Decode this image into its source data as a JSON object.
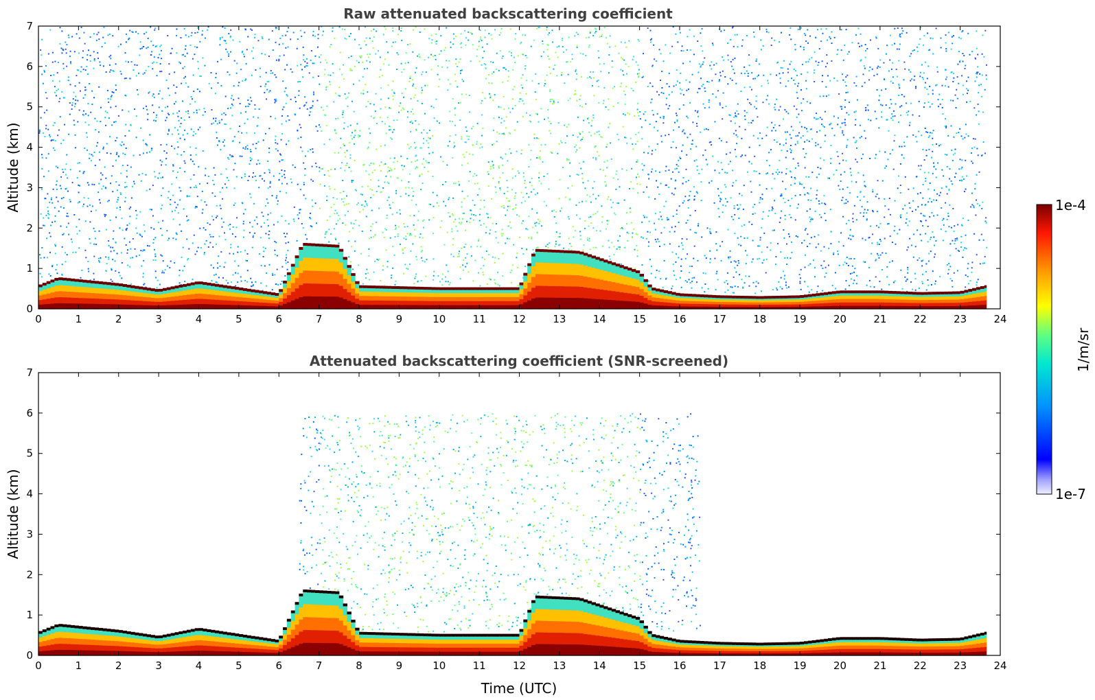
{
  "chart_data": [
    {
      "type": "heatmap",
      "title": "Raw attenuated backscattering coefficient",
      "xlabel": "",
      "ylabel": "Altitude (km)",
      "xlim": [
        0,
        24
      ],
      "ylim": [
        0,
        7
      ],
      "xticks": [
        "0",
        "1",
        "2",
        "3",
        "4",
        "5",
        "6",
        "7",
        "8",
        "9",
        "10",
        "11",
        "12",
        "13",
        "14",
        "15",
        "16",
        "17",
        "18",
        "19",
        "20",
        "21",
        "22",
        "23",
        "24"
      ],
      "yticks": [
        "0",
        "1",
        "2",
        "3",
        "4",
        "5",
        "6",
        "7"
      ],
      "data_end_time": 23.65,
      "boundary_layer_top": [
        [
          0,
          0.55
        ],
        [
          0.5,
          0.75
        ],
        [
          1,
          0.7
        ],
        [
          2,
          0.6
        ],
        [
          3,
          0.45
        ],
        [
          4,
          0.65
        ],
        [
          5,
          0.5
        ],
        [
          6,
          0.35
        ],
        [
          6.6,
          1.6
        ],
        [
          7.5,
          1.55
        ],
        [
          8,
          0.55
        ],
        [
          10,
          0.5
        ],
        [
          12,
          0.5
        ],
        [
          12.4,
          1.45
        ],
        [
          13.5,
          1.4
        ],
        [
          15,
          0.9
        ],
        [
          15.3,
          0.5
        ],
        [
          16,
          0.35
        ],
        [
          17,
          0.3
        ],
        [
          18,
          0.28
        ],
        [
          19,
          0.3
        ],
        [
          20,
          0.42
        ],
        [
          21,
          0.42
        ],
        [
          22,
          0.38
        ],
        [
          23,
          0.4
        ],
        [
          23.65,
          0.55
        ]
      ],
      "noise_density": "high"
    },
    {
      "type": "heatmap",
      "title": "Attenuated backscattering coefficient (SNR-screened)",
      "xlabel": "Time (UTC)",
      "ylabel": "Altitude (km)",
      "xlim": [
        0,
        24
      ],
      "ylim": [
        0,
        7
      ],
      "xticks": [
        "0",
        "1",
        "2",
        "3",
        "4",
        "5",
        "6",
        "7",
        "8",
        "9",
        "10",
        "11",
        "12",
        "13",
        "14",
        "15",
        "16",
        "17",
        "18",
        "19",
        "20",
        "21",
        "22",
        "23",
        "24"
      ],
      "yticks": [
        "0",
        "1",
        "2",
        "3",
        "4",
        "5",
        "6",
        "7"
      ],
      "data_end_time": 23.65,
      "boundary_layer_top": [
        [
          0,
          0.55
        ],
        [
          0.5,
          0.75
        ],
        [
          1,
          0.7
        ],
        [
          2,
          0.6
        ],
        [
          3,
          0.45
        ],
        [
          4,
          0.65
        ],
        [
          5,
          0.5
        ],
        [
          6,
          0.35
        ],
        [
          6.6,
          1.6
        ],
        [
          7.5,
          1.55
        ],
        [
          8,
          0.55
        ],
        [
          10,
          0.5
        ],
        [
          12,
          0.5
        ],
        [
          12.4,
          1.45
        ],
        [
          13.5,
          1.4
        ],
        [
          15,
          0.9
        ],
        [
          15.3,
          0.5
        ],
        [
          16,
          0.35
        ],
        [
          17,
          0.3
        ],
        [
          18,
          0.28
        ],
        [
          19,
          0.3
        ],
        [
          20,
          0.42
        ],
        [
          21,
          0.42
        ],
        [
          22,
          0.38
        ],
        [
          23,
          0.4
        ],
        [
          23.65,
          0.55
        ]
      ],
      "noise_density": "low"
    }
  ],
  "colorbar": {
    "max_label": "1e-4",
    "min_label": "1e-7",
    "unit_label": "1/m/sr",
    "colormap": "jet"
  },
  "colors": {
    "title": "#404040",
    "axis": "#000000"
  }
}
